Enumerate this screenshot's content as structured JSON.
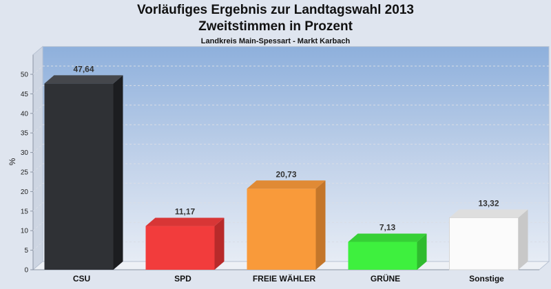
{
  "header": {
    "title": "Vorläufiges Ergebnis zur Landtagswahl 2013",
    "subtitle": "Zweitstimmen in Prozent",
    "caption": "Landkreis Main-Spessart - Markt Karbach"
  },
  "chart_data": {
    "type": "bar",
    "title": "Vorläufiges Ergebnis zur Landtagswahl 2013",
    "subtitle": "Zweitstimmen in Prozent",
    "ylabel": "%",
    "xlabel": "",
    "ylim": [
      0,
      55
    ],
    "yticks": [
      0,
      5,
      10,
      15,
      20,
      25,
      30,
      35,
      40,
      45,
      50
    ],
    "grid": true,
    "categories": [
      "CSU",
      "SPD",
      "FREIE WÄHLER",
      "GRÜNE",
      "Sonstige"
    ],
    "values": [
      47.64,
      11.17,
      20.73,
      7.13,
      13.32
    ],
    "value_labels": [
      "47,64",
      "11,17",
      "20,73",
      "7,13",
      "13,32"
    ],
    "colors": [
      "#2f3135",
      "#f23c3c",
      "#f99a3a",
      "#3ef03e",
      "#fbfbfb"
    ],
    "side_colors": [
      "#1c1d20",
      "#b82a2a",
      "#c4762a",
      "#2fbb2f",
      "#c8c8c8"
    ],
    "top_colors": [
      "#45474c",
      "#d83636",
      "#e08a35",
      "#36d036",
      "#dedede"
    ]
  }
}
